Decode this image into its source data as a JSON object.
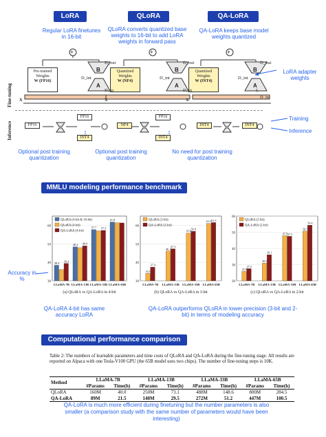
{
  "headers": {
    "lora": "LoRA",
    "qlora": "QLoRA",
    "qalora": "QA-LoRA"
  },
  "descriptions": {
    "lora": "Regular LoRA finetunes in 16-bit",
    "qlora": "QLoRA converts quantized base weights to 16-bit to add LoRA weights in forward pass",
    "qalora": "QA-LoRA keeps base model weights quantized"
  },
  "adapter_label": "LoRA adapter weights",
  "row_labels": {
    "finetuning": "Fine-tuning",
    "inference": "Inference"
  },
  "diagram": {
    "plus": "+",
    "x_label": "X",
    "a_label": "A",
    "b_label": "B",
    "d_out": "D_out",
    "d_int": "D_int",
    "d_in": "D_in",
    "lora_weight_line1": "Pre-trained",
    "lora_weight_line2": "Weights",
    "lora_weight_line3": "W (FP16)",
    "qlora_weight_line1": "Quantized",
    "qlora_weight_line2": "Weights",
    "qlora_weight_line3": "W (NF4)",
    "qalora_weight_line1": "Quantized",
    "qalora_weight_line2": "Weights",
    "qalora_weight_line3": "W (INT4)",
    "l_label": "L",
    "fp16": "FP16",
    "nf4": "NF4",
    "int4": "INT4"
  },
  "legend": {
    "training": "Training",
    "inference": "Inference"
  },
  "post_notes": {
    "lora": "Optional post training quantization",
    "qlora": "Optional post training quantization",
    "qalora": "No need for post training quantization"
  },
  "section_mmlu": "MMLU modeling performance benchmark",
  "accuracy_label": "Accuracy in %",
  "chart_data": [
    {
      "type": "bar",
      "categories": [
        "LLaMA-7B",
        "LLaMA-13B",
        "LLaMA-33B",
        "LLaMA-65B"
      ],
      "series": [
        {
          "name": "QLoRA (4-bit & 16-bit)",
          "values": [
            38.4,
            48.4,
            57.7,
            61.8
          ]
        },
        {
          "name": "QLoRA (4-bit)",
          "values": [
            36.1,
            47.9,
            57.0,
            61.4
          ]
        },
        {
          "name": "QA-LoRA (4-bit)",
          "values": [
            39.4,
            48.9,
            57.3,
            61.3
          ]
        }
      ],
      "value_labels": [
        [
          "38.4",
          "48.4",
          "57.7",
          "61.8"
        ],
        [
          "",
          "",
          "",
          ""
        ],
        [
          "39.4",
          "48.9",
          "57.3",
          ""
        ]
      ],
      "ylim": [
        30,
        65
      ],
      "yticks": [
        "30",
        "40",
        "50",
        "60"
      ],
      "caption": "(a) QLoRA vs QA-LoRA in 4-bit"
    },
    {
      "type": "bar",
      "categories": [
        "LLaMA-7B",
        "LLaMA-13B",
        "LLaMA-33B",
        "LLaMA-65B"
      ],
      "series": [
        {
          "name": "QLoRA (3-bit)",
          "values": [
            34.0,
            46.1,
            55.8,
            61.0
          ]
        },
        {
          "name": "QA-LoRA (3-bit)",
          "values": [
            37.4,
            47.3,
            56.8,
            61.5
          ]
        }
      ],
      "value_labels": [
        [
          "34.0",
          "46.1",
          "55.8",
          "61.0"
        ],
        [
          "37.4",
          "47.3",
          "56.8",
          "61.5"
        ]
      ],
      "ylim": [
        30,
        65
      ],
      "yticks": [
        "30",
        "40",
        "50",
        "60"
      ],
      "caption": "(b) QLoRA vs QA-LoRA in 3-bit"
    },
    {
      "type": "bar",
      "categories": [
        "LLaMA-7B",
        "LLaMA-13B",
        "LLaMA-33B",
        "LLaMA-65B"
      ],
      "series": [
        {
          "name": "QLoRA (2-bit)",
          "values": [
            25.8,
            30.9,
            47.9,
            50.7
          ]
        },
        {
          "name": "QA-LoRA (2-bit)",
          "values": [
            27.5,
            36.1,
            47.5,
            54.4
          ]
        }
      ],
      "value_labels": [
        [
          "25.8",
          "30.9",
          "47.9",
          "50.7"
        ],
        [
          "27.5",
          "36.1",
          "47.5",
          "54.4"
        ]
      ],
      "ylim": [
        20,
        60
      ],
      "yticks": [
        "20",
        "30",
        "40",
        "50",
        "60"
      ],
      "caption": "(c) QLoRA vs QA-LoRA in 2-bit"
    }
  ],
  "chart_colors": {
    "blue": "#4a6fa5",
    "orange": "#f5b041",
    "red": "#8b1a1a"
  },
  "note_4bit": "QA-LoRA 4-bit has same accuracy LoRA",
  "note_lower": "QA-LoRA outperforms QLoRA in lower-precision (3-bit and 2-bit) in terms of modeling accuracy",
  "section_compute": "Computational performance comparison",
  "table": {
    "caption": "Table 2: The numbers of learnable parameters and time costs of QLoRA and QA-LoRA during the fine-tuning stage. All results are reported on Alpaca with one Tesla-V100 GPU (the 65B model uses two chips). The number of fine-tuning steps is 10K.",
    "method_header": "Method",
    "model_headers": [
      "LLaMA-7B",
      "LLaMA-13B",
      "LLaMA-33B",
      "LLaMA-65B"
    ],
    "params_header": "#Params",
    "time_header": "Time(h)",
    "rows": [
      {
        "method": "QLoRA",
        "cells": [
          "160M",
          "40.0",
          "250M",
          "73.1",
          "488M",
          "148.6",
          "800M",
          "284.5"
        ]
      },
      {
        "method": "QA-LoRA",
        "cells": [
          "89M",
          "21.5",
          "140M",
          "29.5",
          "272M",
          "51.2",
          "447M",
          "100.5"
        ]
      }
    ]
  },
  "note_compute": "QA-LoRA is much more efficient during finetuning but the number parameters is also smaller (a comparison study with the same number of parameters would have been interesting)"
}
